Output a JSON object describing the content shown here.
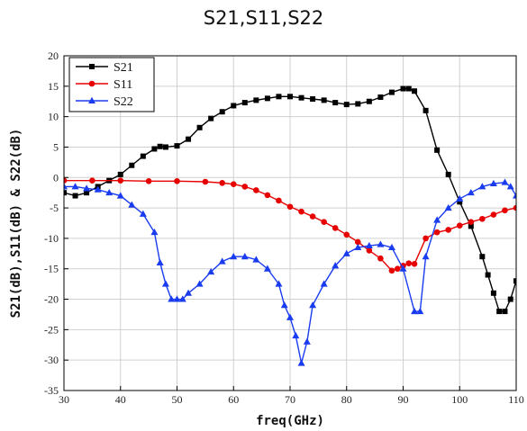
{
  "chart_data": {
    "type": "line",
    "title": "S21,S11,S22",
    "xlabel": "freq(GHz)",
    "ylabel": "S21(dB),S11(dB) & S22(dB)",
    "xlim": [
      30,
      110
    ],
    "ylim": [
      -35,
      20
    ],
    "xticks": [
      30,
      40,
      50,
      60,
      70,
      80,
      90,
      100,
      110
    ],
    "yticks": [
      20,
      15,
      10,
      5,
      0,
      -5,
      -10,
      -15,
      -20,
      -25,
      -30,
      -35
    ],
    "grid": true,
    "legend_position": "top-left",
    "series": [
      {
        "name": "S21",
        "color": "#000000",
        "marker": "square",
        "x": [
          30,
          32,
          34,
          36,
          38,
          40,
          42,
          44,
          46,
          47,
          48,
          50,
          52,
          54,
          56,
          58,
          60,
          62,
          64,
          66,
          68,
          70,
          72,
          74,
          76,
          78,
          80,
          82,
          84,
          86,
          88,
          90,
          91,
          92,
          94,
          96,
          98,
          100,
          102,
          104,
          105,
          106,
          107,
          108,
          109,
          110
        ],
        "values": [
          -2.5,
          -3,
          -2.5,
          -1.5,
          -0.5,
          0.5,
          2,
          3.5,
          4.7,
          5.1,
          5.0,
          5.2,
          6.3,
          8.2,
          9.7,
          10.8,
          11.8,
          12.3,
          12.7,
          13.0,
          13.3,
          13.3,
          13.1,
          12.9,
          12.7,
          12.3,
          12.0,
          12.1,
          12.5,
          13.2,
          14.0,
          14.6,
          14.6,
          14.2,
          11.0,
          4.5,
          0.5,
          -4.0,
          -8.0,
          -13.0,
          -16.0,
          -19.0,
          -22.0,
          -22.0,
          -20.0,
          -17.0
        ]
      },
      {
        "name": "S11",
        "color": "#e60000",
        "marker": "circle",
        "x": [
          30,
          35,
          40,
          45,
          50,
          55,
          58,
          60,
          62,
          64,
          66,
          68,
          70,
          72,
          74,
          76,
          78,
          80,
          82,
          84,
          86,
          88,
          89,
          90,
          91,
          92,
          94,
          96,
          98,
          100,
          102,
          104,
          106,
          108,
          110
        ],
        "values": [
          -0.5,
          -0.5,
          -0.5,
          -0.6,
          -0.6,
          -0.7,
          -0.9,
          -1.1,
          -1.5,
          -2.1,
          -2.9,
          -3.8,
          -4.8,
          -5.6,
          -6.4,
          -7.3,
          -8.3,
          -9.4,
          -10.6,
          -12.0,
          -13.3,
          -15.3,
          -15.0,
          -14.5,
          -14.1,
          -14.2,
          -10.0,
          -9.0,
          -8.6,
          -7.9,
          -7.3,
          -6.8,
          -6.1,
          -5.4,
          -5.0
        ]
      },
      {
        "name": "S22",
        "color": "#1a3cf0",
        "marker": "triangle",
        "x": [
          30,
          32,
          34,
          36,
          38,
          40,
          42,
          44,
          46,
          47,
          48,
          49,
          50,
          51,
          52,
          54,
          56,
          58,
          60,
          62,
          64,
          66,
          68,
          69,
          70,
          71,
          72,
          73,
          74,
          76,
          78,
          80,
          82,
          84,
          86,
          88,
          90,
          92,
          93,
          94,
          96,
          98,
          100,
          102,
          104,
          106,
          108,
          109,
          110
        ],
        "values": [
          -1.5,
          -1.5,
          -1.8,
          -2.0,
          -2.5,
          -3.0,
          -4.5,
          -6.0,
          -9.0,
          -14.0,
          -17.5,
          -20.0,
          -20.0,
          -20.0,
          -19.0,
          -17.5,
          -15.5,
          -13.8,
          -13.0,
          -13.0,
          -13.5,
          -15.0,
          -17.5,
          -21.0,
          -23.0,
          -26.0,
          -30.5,
          -27.0,
          -21.0,
          -17.5,
          -14.5,
          -12.5,
          -11.5,
          -11.2,
          -11.0,
          -11.5,
          -15.0,
          -22.0,
          -22.0,
          -13.0,
          -7.0,
          -5.0,
          -3.5,
          -2.5,
          -1.5,
          -1.0,
          -0.8,
          -1.5,
          -3.0
        ]
      }
    ]
  }
}
